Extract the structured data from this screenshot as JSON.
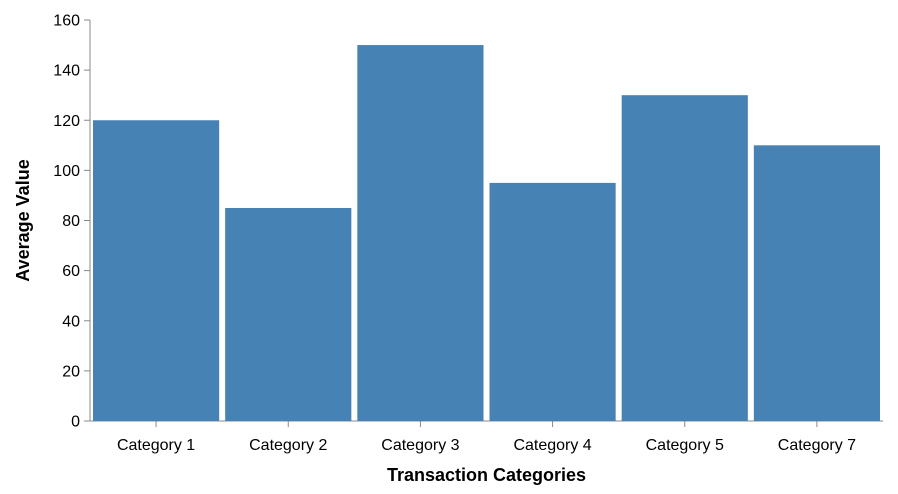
{
  "chart_data": {
    "type": "bar",
    "categories": [
      "Category 1",
      "Category 2",
      "Category 3",
      "Category 4",
      "Category 5",
      "Category 7"
    ],
    "values": [
      120,
      85,
      150,
      95,
      130,
      110
    ],
    "title": "",
    "xlabel": "Transaction Categories",
    "ylabel": "Average Value",
    "ylim": [
      0,
      160
    ],
    "yticks": [
      0,
      20,
      40,
      60,
      80,
      100,
      120,
      140,
      160
    ],
    "grid": false,
    "legend": "none",
    "bar_color": "#4682b4",
    "axis_color": "#888888"
  }
}
